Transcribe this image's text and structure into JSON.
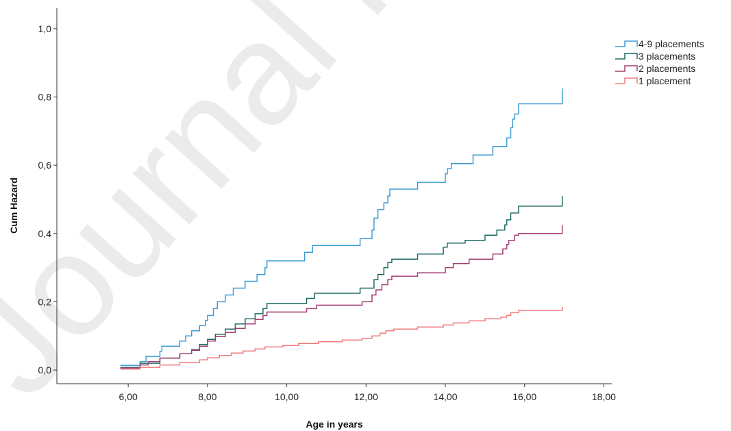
{
  "watermark": "Journal Pre-proof",
  "chart_data": {
    "type": "line",
    "title": "",
    "xlabel": "Age in years",
    "ylabel": "Cum Hazard",
    "xlim": [
      4.2,
      18.2
    ],
    "ylim": [
      -0.04,
      1.06
    ],
    "x_ticks": [
      6,
      8,
      10,
      12,
      14,
      16,
      18
    ],
    "x_tick_labels": [
      "6,00",
      "8,00",
      "10,00",
      "12,00",
      "14,00",
      "16,00",
      "18,00"
    ],
    "y_ticks": [
      0,
      0.2,
      0.4,
      0.6,
      0.8,
      1.0
    ],
    "y_tick_labels": [
      "0,0",
      "0,2",
      "0,4",
      "0,6",
      "0,8",
      "1,0"
    ],
    "grid": false,
    "legend_position": "top-right",
    "series": [
      {
        "name": "4-9 placements",
        "color": "#3d9bd6",
        "step": true,
        "points": [
          [
            5.8,
            0.014
          ],
          [
            6.3,
            0.025
          ],
          [
            6.45,
            0.04
          ],
          [
            6.8,
            0.055
          ],
          [
            6.85,
            0.07
          ],
          [
            7.3,
            0.085
          ],
          [
            7.45,
            0.1
          ],
          [
            7.6,
            0.115
          ],
          [
            7.8,
            0.13
          ],
          [
            7.95,
            0.145
          ],
          [
            8.0,
            0.16
          ],
          [
            8.15,
            0.18
          ],
          [
            8.25,
            0.2
          ],
          [
            8.45,
            0.22
          ],
          [
            8.65,
            0.24
          ],
          [
            8.95,
            0.26
          ],
          [
            9.25,
            0.28
          ],
          [
            9.45,
            0.3
          ],
          [
            9.5,
            0.32
          ],
          [
            10.45,
            0.345
          ],
          [
            10.65,
            0.365
          ],
          [
            11.85,
            0.385
          ],
          [
            12.15,
            0.41
          ],
          [
            12.2,
            0.445
          ],
          [
            12.3,
            0.47
          ],
          [
            12.45,
            0.49
          ],
          [
            12.55,
            0.51
          ],
          [
            12.6,
            0.53
          ],
          [
            13.3,
            0.55
          ],
          [
            14.0,
            0.575
          ],
          [
            14.05,
            0.59
          ],
          [
            14.15,
            0.605
          ],
          [
            14.7,
            0.63
          ],
          [
            15.2,
            0.655
          ],
          [
            15.55,
            0.68
          ],
          [
            15.65,
            0.71
          ],
          [
            15.7,
            0.735
          ],
          [
            15.75,
            0.75
          ],
          [
            15.85,
            0.78
          ],
          [
            16.95,
            0.825
          ]
        ]
      },
      {
        "name": "3 placements",
        "color": "#1d6a62",
        "step": true,
        "points": [
          [
            5.8,
            0.008
          ],
          [
            6.3,
            0.02
          ],
          [
            6.8,
            0.035
          ],
          [
            7.3,
            0.048
          ],
          [
            7.6,
            0.06
          ],
          [
            7.8,
            0.075
          ],
          [
            8.0,
            0.09
          ],
          [
            8.2,
            0.105
          ],
          [
            8.45,
            0.12
          ],
          [
            8.7,
            0.135
          ],
          [
            8.95,
            0.15
          ],
          [
            9.2,
            0.165
          ],
          [
            9.4,
            0.18
          ],
          [
            9.5,
            0.195
          ],
          [
            10.5,
            0.21
          ],
          [
            10.7,
            0.225
          ],
          [
            11.85,
            0.24
          ],
          [
            12.2,
            0.265
          ],
          [
            12.3,
            0.28
          ],
          [
            12.45,
            0.3
          ],
          [
            12.55,
            0.315
          ],
          [
            12.65,
            0.325
          ],
          [
            13.3,
            0.34
          ],
          [
            13.95,
            0.36
          ],
          [
            14.05,
            0.372
          ],
          [
            14.5,
            0.38
          ],
          [
            15.0,
            0.395
          ],
          [
            15.3,
            0.41
          ],
          [
            15.5,
            0.425
          ],
          [
            15.55,
            0.44
          ],
          [
            15.65,
            0.46
          ],
          [
            15.85,
            0.48
          ],
          [
            16.95,
            0.51
          ]
        ]
      },
      {
        "name": "2 placements",
        "color": "#a23d73",
        "step": true,
        "points": [
          [
            5.8,
            0.006
          ],
          [
            6.3,
            0.015
          ],
          [
            6.5,
            0.025
          ],
          [
            6.8,
            0.035
          ],
          [
            7.3,
            0.048
          ],
          [
            7.6,
            0.058
          ],
          [
            7.8,
            0.07
          ],
          [
            8.0,
            0.085
          ],
          [
            8.2,
            0.098
          ],
          [
            8.45,
            0.11
          ],
          [
            8.7,
            0.122
          ],
          [
            8.95,
            0.135
          ],
          [
            9.2,
            0.148
          ],
          [
            9.4,
            0.16
          ],
          [
            9.5,
            0.17
          ],
          [
            10.5,
            0.18
          ],
          [
            10.75,
            0.19
          ],
          [
            11.9,
            0.2
          ],
          [
            12.15,
            0.22
          ],
          [
            12.25,
            0.235
          ],
          [
            12.4,
            0.25
          ],
          [
            12.55,
            0.265
          ],
          [
            12.65,
            0.275
          ],
          [
            13.3,
            0.285
          ],
          [
            14.0,
            0.3
          ],
          [
            14.2,
            0.312
          ],
          [
            14.6,
            0.325
          ],
          [
            15.2,
            0.34
          ],
          [
            15.45,
            0.355
          ],
          [
            15.55,
            0.368
          ],
          [
            15.6,
            0.38
          ],
          [
            15.75,
            0.395
          ],
          [
            15.85,
            0.4
          ],
          [
            16.95,
            0.425
          ]
        ]
      },
      {
        "name": "1 placement",
        "color": "#f07b7b",
        "step": true,
        "points": [
          [
            5.8,
            0.003
          ],
          [
            6.3,
            0.008
          ],
          [
            6.8,
            0.015
          ],
          [
            7.3,
            0.022
          ],
          [
            7.8,
            0.03
          ],
          [
            8.0,
            0.036
          ],
          [
            8.3,
            0.043
          ],
          [
            8.6,
            0.05
          ],
          [
            8.9,
            0.056
          ],
          [
            9.2,
            0.062
          ],
          [
            9.45,
            0.068
          ],
          [
            9.9,
            0.072
          ],
          [
            10.3,
            0.078
          ],
          [
            10.8,
            0.083
          ],
          [
            11.4,
            0.088
          ],
          [
            11.9,
            0.093
          ],
          [
            12.15,
            0.1
          ],
          [
            12.35,
            0.108
          ],
          [
            12.5,
            0.115
          ],
          [
            12.7,
            0.12
          ],
          [
            13.3,
            0.126
          ],
          [
            13.95,
            0.132
          ],
          [
            14.2,
            0.138
          ],
          [
            14.6,
            0.144
          ],
          [
            15.0,
            0.15
          ],
          [
            15.4,
            0.155
          ],
          [
            15.55,
            0.16
          ],
          [
            15.65,
            0.168
          ],
          [
            15.85,
            0.175
          ],
          [
            16.95,
            0.185
          ]
        ]
      }
    ]
  }
}
